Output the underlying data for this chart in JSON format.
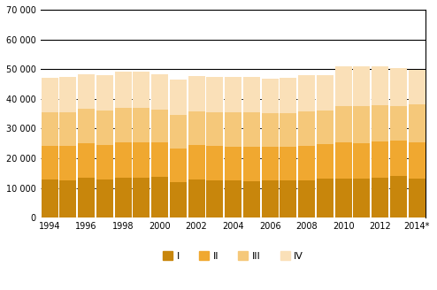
{
  "years": [
    1994,
    1995,
    1996,
    1997,
    1998,
    1999,
    2000,
    2001,
    2002,
    2003,
    2004,
    2005,
    2006,
    2007,
    2008,
    2009,
    2010,
    2011,
    2012,
    2013,
    2014
  ],
  "year_labels": [
    "1994",
    "1996",
    "1998",
    "2000",
    "2002",
    "2004",
    "2006",
    "2008",
    "2010",
    "2012",
    "2014*"
  ],
  "Q1": [
    12800,
    12700,
    13500,
    12900,
    13400,
    13500,
    13600,
    11900,
    12800,
    12700,
    12500,
    12400,
    12500,
    12500,
    12600,
    13100,
    13200,
    13200,
    13300,
    14100,
    13000
  ],
  "Q2": [
    11500,
    11600,
    11600,
    11700,
    11900,
    11700,
    11600,
    11400,
    11600,
    11500,
    11500,
    11500,
    11400,
    11400,
    11700,
    11600,
    12000,
    11800,
    12300,
    11800,
    12400
  ],
  "Q3": [
    11200,
    11300,
    11500,
    11500,
    11600,
    11800,
    11300,
    11400,
    11300,
    11400,
    11400,
    11600,
    11400,
    11300,
    11600,
    11500,
    12300,
    12400,
    12100,
    11700,
    12800
  ],
  "Q4": [
    11500,
    11700,
    11800,
    12000,
    12200,
    12200,
    11700,
    11900,
    11900,
    11900,
    11900,
    11900,
    11600,
    11900,
    12100,
    11800,
    13400,
    13400,
    13200,
    12700,
    11600
  ],
  "colors": [
    "#C8860C",
    "#F0A830",
    "#F5C87A",
    "#FAE0B8"
  ],
  "bar_width": 0.92,
  "ylim": [
    0,
    70000
  ],
  "yticks": [
    0,
    10000,
    20000,
    30000,
    40000,
    50000,
    60000,
    70000
  ],
  "ytick_labels": [
    "0",
    "10 000",
    "20 000",
    "30 000",
    "40 000",
    "50 000",
    "60 000",
    "70 000"
  ],
  "legend_labels": [
    "I",
    "II",
    "III",
    "IV"
  ],
  "xlabel": "",
  "ylabel": "",
  "bg_color": "#ffffff",
  "solid_gridlines": [
    0,
    50000,
    60000,
    70000
  ],
  "dashed_gridlines": [
    10000,
    20000,
    30000,
    40000
  ]
}
